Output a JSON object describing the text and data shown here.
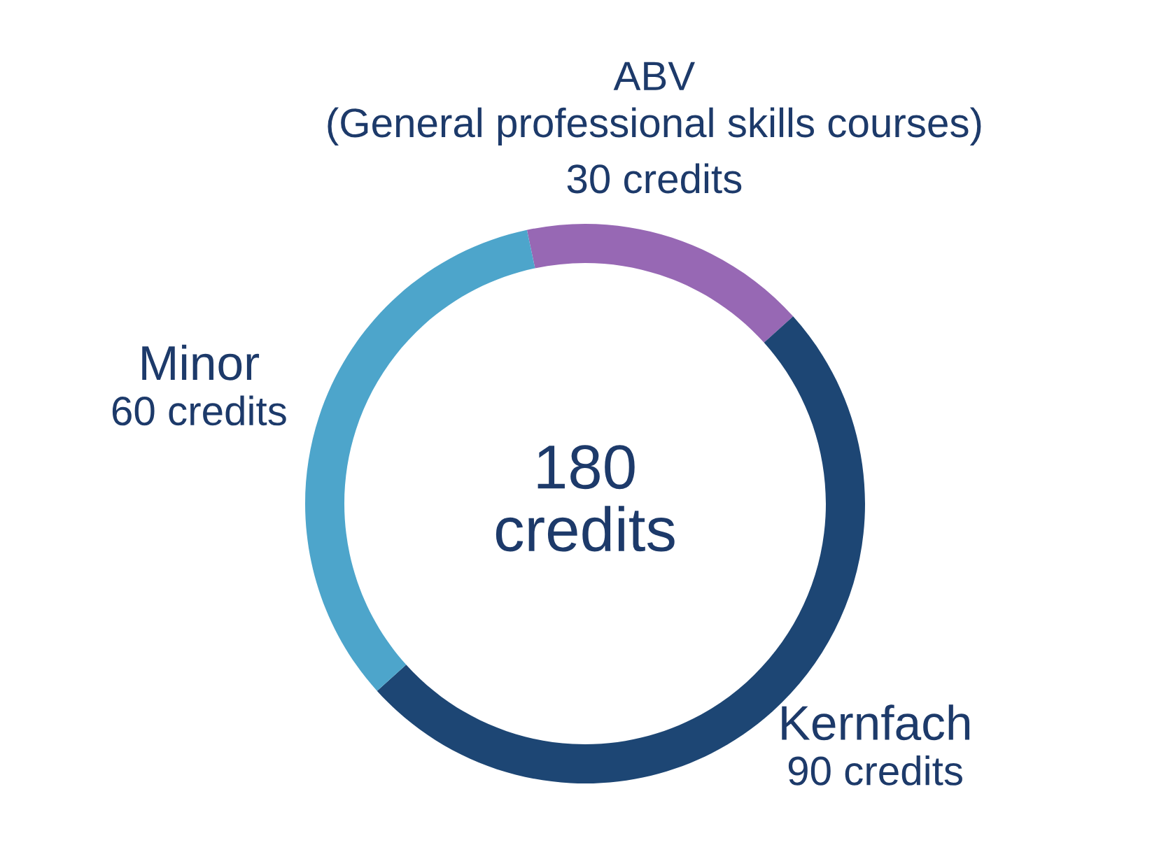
{
  "chart_data": {
    "type": "donut",
    "categories": [
      "ABV\n(General professional skills courses)",
      "Kernfach",
      "Minor"
    ],
    "values": [
      30,
      90,
      60
    ],
    "colors": [
      "#9768b4",
      "#1d4674",
      "#4da5cb"
    ],
    "value_labels": [
      "30 credits",
      "90 credits",
      "60 credits"
    ],
    "annotations": [
      "180\ncredits"
    ]
  }
}
